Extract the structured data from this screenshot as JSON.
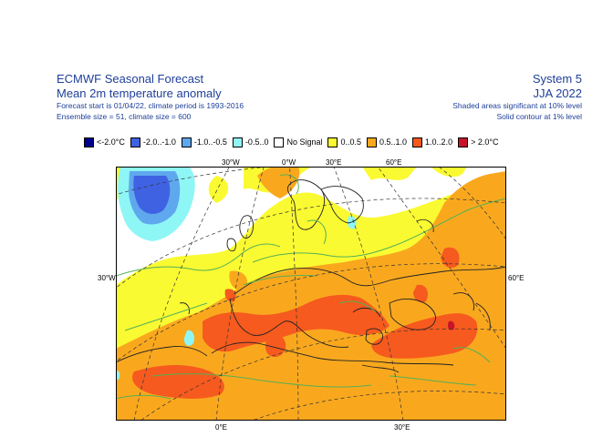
{
  "header": {
    "title_line1": "ECMWF Seasonal Forecast",
    "title_line2": "Mean 2m temperature anomaly",
    "info_line1": "Forecast start is 01/04/22, climate period is 1993-2016",
    "info_line2": "Ensemble size = 51, climate size = 600",
    "system": "System 5",
    "season": "JJA 2022",
    "sig_line1": "Shaded areas significant at 10% level",
    "sig_line2": "Solid contour at 1% level"
  },
  "legend": [
    {
      "label": "<-2.0°C",
      "color": "#00008c"
    },
    {
      "label": "-2.0..-1.0",
      "color": "#3f62e3"
    },
    {
      "label": "-1.0..-0.5",
      "color": "#5fa8ee"
    },
    {
      "label": "-0.5..0",
      "color": "#8ff6f6"
    },
    {
      "label": "No Signal",
      "color": "#ffffff"
    },
    {
      "label": "0..0.5",
      "color": "#fafa32"
    },
    {
      "label": "0.5..1.0",
      "color": "#f9a81e"
    },
    {
      "label": "1.0..2.0",
      "color": "#f65a1e"
    },
    {
      "label": "> 2.0°C",
      "color": "#c8142a"
    }
  ],
  "map": {
    "lon_top": [
      "30°W",
      "0°W",
      "30°E",
      "60°E"
    ],
    "lon_bottom": [
      "0°E",
      "30°E"
    ],
    "lat_left": "30°W",
    "lat_right": "60°E"
  }
}
